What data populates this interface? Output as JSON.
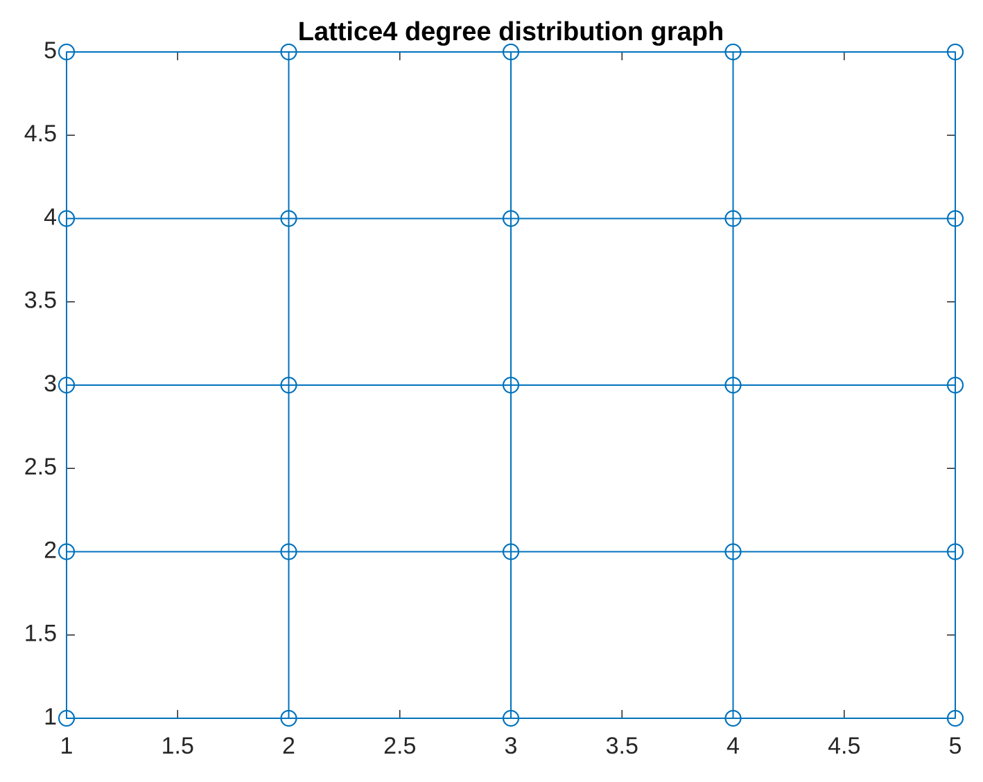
{
  "chart_data": {
    "type": "line",
    "title": "Lattice4 degree distribution graph",
    "marker": "o",
    "color": "#0072bd",
    "xlim": [
      1,
      5
    ],
    "ylim": [
      1,
      5
    ],
    "xticks": [
      1,
      1.5,
      2,
      2.5,
      3,
      3.5,
      4,
      4.5,
      5
    ],
    "yticks": [
      1,
      1.5,
      2,
      2.5,
      3,
      3.5,
      4,
      4.5,
      5
    ],
    "grid": false,
    "box": true,
    "series": [
      {
        "x": [
          1,
          2,
          3,
          4,
          5
        ],
        "values": [
          1,
          1,
          1,
          1,
          1
        ]
      },
      {
        "x": [
          1,
          2,
          3,
          4,
          5
        ],
        "values": [
          2,
          2,
          2,
          2,
          2
        ]
      },
      {
        "x": [
          1,
          2,
          3,
          4,
          5
        ],
        "values": [
          3,
          3,
          3,
          3,
          3
        ]
      },
      {
        "x": [
          1,
          2,
          3,
          4,
          5
        ],
        "values": [
          4,
          4,
          4,
          4,
          4
        ]
      },
      {
        "x": [
          1,
          2,
          3,
          4,
          5
        ],
        "values": [
          5,
          5,
          5,
          5,
          5
        ]
      },
      {
        "x": [
          1,
          1,
          1,
          1,
          1
        ],
        "values": [
          1,
          2,
          3,
          4,
          5
        ]
      },
      {
        "x": [
          2,
          2,
          2,
          2,
          2
        ],
        "values": [
          1,
          2,
          3,
          4,
          5
        ]
      },
      {
        "x": [
          3,
          3,
          3,
          3,
          3
        ],
        "values": [
          1,
          2,
          3,
          4,
          5
        ]
      },
      {
        "x": [
          4,
          4,
          4,
          4,
          4
        ],
        "values": [
          1,
          2,
          3,
          4,
          5
        ]
      },
      {
        "x": [
          5,
          5,
          5,
          5,
          5
        ],
        "values": [
          1,
          2,
          3,
          4,
          5
        ]
      }
    ]
  }
}
